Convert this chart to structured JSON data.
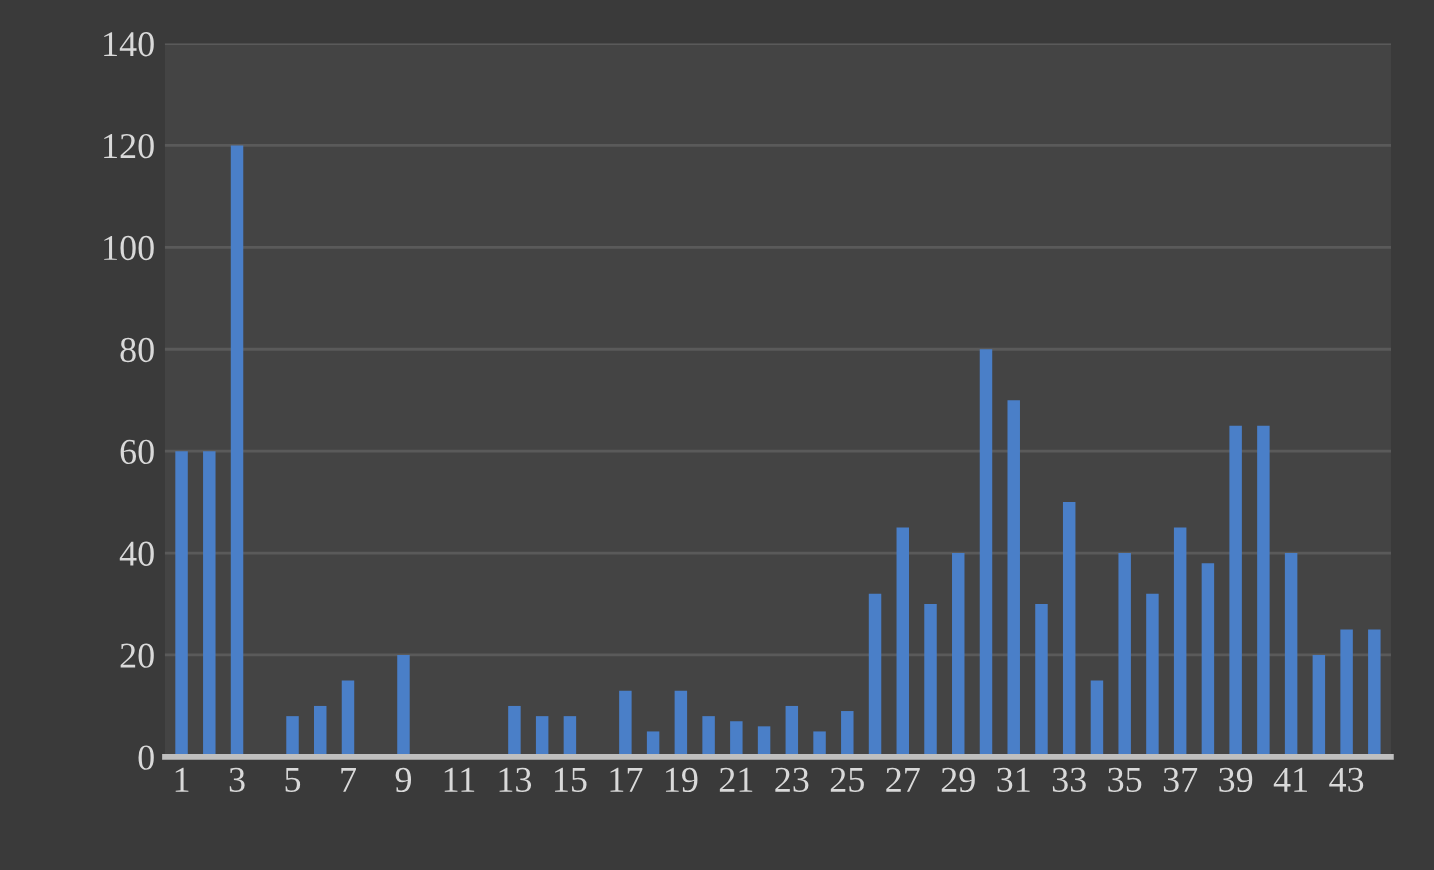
{
  "chart_data": {
    "type": "bar",
    "categories": [
      "1",
      null,
      "3",
      null,
      "5",
      null,
      "7",
      null,
      "9",
      null,
      "11",
      null,
      "13",
      null,
      "15",
      null,
      "17",
      null,
      "19",
      null,
      "21",
      null,
      "23",
      null,
      "25",
      null,
      "27",
      null,
      "29",
      null,
      "31",
      null,
      "33",
      null,
      "35",
      null,
      "37",
      null,
      "39",
      null,
      "41",
      null,
      "43",
      null
    ],
    "values": [
      60,
      60,
      120,
      0,
      8,
      10,
      15,
      0,
      20,
      0,
      0,
      0,
      10,
      8,
      8,
      0,
      13,
      5,
      13,
      8,
      7,
      6,
      10,
      5,
      9,
      32,
      45,
      30,
      40,
      80,
      70,
      30,
      50,
      15,
      40,
      32,
      45,
      38,
      65,
      65,
      40,
      20,
      25,
      25
    ],
    "color": "#4a7fc8",
    "ylim": [
      0,
      140
    ],
    "yticks": [
      0,
      20,
      40,
      60,
      80,
      100,
      120,
      140
    ],
    "grid": "y",
    "legend": false
  }
}
